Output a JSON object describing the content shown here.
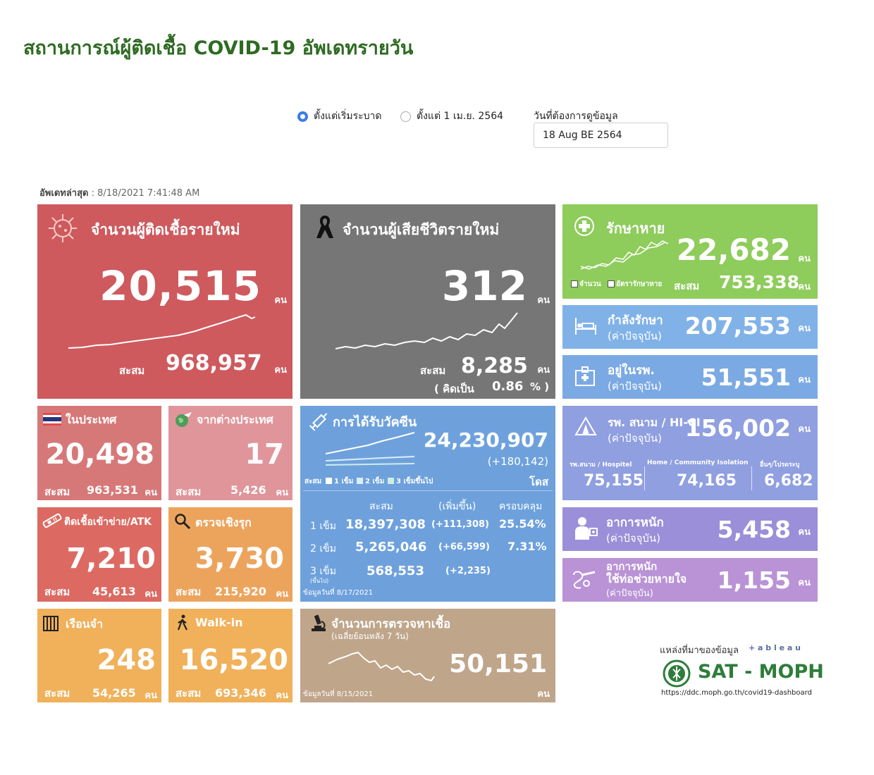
{
  "page_title": "สถานการณ์ผู้ติดเชื้อ COVID-19 อัพเดทรายวัน",
  "filters": {
    "radio_all": "ตั้งแต่เริ่มระบาด",
    "radio_apr": "ตั้งแต่ 1 เม.ย. 2564",
    "selected": "radio_all",
    "date_label": "วันที่ต้องการดูข้อมูล",
    "date_value": "18 Aug BE 2564"
  },
  "updated": {
    "label": "อัพเดทล่าสุด",
    "value": ": 8/18/2021 7:41:48 AM"
  },
  "unit": "คน",
  "cum_label": "สะสม",
  "new_cases": {
    "title": "จำนวนผู้ติดเชื้อรายใหม่",
    "value": "20,515",
    "cumulative": "968,957"
  },
  "deaths": {
    "title": "จำนวนผู้เสียชีวิตรายใหม่",
    "value": "312",
    "cumulative": "8,285",
    "pct_label": "( คิดเป็น",
    "pct_value": "0.86",
    "pct_unit": "% )"
  },
  "recovered": {
    "title": "รักษาหาย",
    "value": "22,682",
    "legend_count": "จำนวน",
    "legend_rate": "อัตรารักษาหาย",
    "cumulative": "753,338"
  },
  "treating": {
    "title": "กำลังรักษา",
    "sub": "(ค่าปัจจุบัน)",
    "value": "207,553"
  },
  "hospital": {
    "title": "อยู่ในรพ.",
    "sub": "(ค่าปัจจุบัน)",
    "value": "51,551"
  },
  "field_hospital": {
    "title": "รพ. สนาม / HI-CI",
    "sub": "(ค่าปัจจุบัน)",
    "value": "156,002",
    "breakdown": [
      {
        "label": "รพ.สนาม / Hospitel",
        "value": "75,155"
      },
      {
        "label": "Home / Community Isolation",
        "value": "74,165"
      },
      {
        "label": "อื่นๆ/โปรดระบุ",
        "value": "6,682"
      }
    ]
  },
  "severe": {
    "title": "อาการหนัก",
    "sub": "(ค่าปัจจุบัน)",
    "value": "5,458"
  },
  "ventilator": {
    "title": "อาการหนัก",
    "title2": "ใช้ท่อช่วยหายใจ",
    "sub": "(ค่าปัจจุบัน)",
    "value": "1,155"
  },
  "domestic": {
    "title": "ในประเทศ",
    "value": "20,498",
    "cumulative": "963,531"
  },
  "imported": {
    "title": "จากต่างประเทศ",
    "value": "17",
    "cumulative": "5,426"
  },
  "prison_atk": {
    "title": "ติดเชื้อเข้าข่าย/ATK",
    "value": "7,210",
    "cumulative": "45,613"
  },
  "proactive": {
    "title": "ตรวจเชิงรุก",
    "value": "3,730",
    "cumulative": "215,920"
  },
  "prison": {
    "title": "เรือนจำ",
    "value": "248",
    "cumulative": "54,265"
  },
  "walkin": {
    "title": "Walk-in",
    "value": "16,520",
    "cumulative": "693,346"
  },
  "vaccine": {
    "title": "การได้รับวัคซีน",
    "total": "24,230,907",
    "delta": "(+180,142)",
    "unit": "โดส",
    "legend": [
      "สะสม",
      "1 เข็ม",
      "2 เข็ม",
      "3 เข็มขึ้นไป"
    ],
    "headers": [
      "สะสม",
      "(เพิ่มขึ้น)",
      "ครอบคลุม"
    ],
    "rows": [
      {
        "dose": "1 เข็ม",
        "cum": "18,397,308",
        "inc": "(+111,308)",
        "cov": "25.54%"
      },
      {
        "dose": "2 เข็ม",
        "cum": "5,265,046",
        "inc": "(+66,599)",
        "cov": "7.31%"
      },
      {
        "dose": "3 เข็ม",
        "dose_sub": "(ขึ้นไป)",
        "cum": "568,553",
        "inc": "(+2,235)",
        "cov": ""
      }
    ],
    "as_of": "ข้อมูลวันที่ 8/17/2021"
  },
  "testing": {
    "title": "จำนวนการตรวจหาเชื้อ",
    "sub": "(เฉลี่ยย้อนหลัง 7 วัน)",
    "value": "50,151",
    "as_of": "ข้อมูลวันที่ 8/15/2021"
  },
  "source": {
    "label": "แหล่งที่มาของข้อมูล",
    "tableau": "+ a b l e a u",
    "brand": "SAT - MOPH",
    "url": "https://ddc.moph.go.th/covid19-dashboard"
  },
  "colors": {
    "title_green": "#2e6b22",
    "new_cases": "#ce5a5e",
    "deaths": "#767676",
    "recovered": "#8ecc5b",
    "vaccine": "#6ea1dc"
  }
}
